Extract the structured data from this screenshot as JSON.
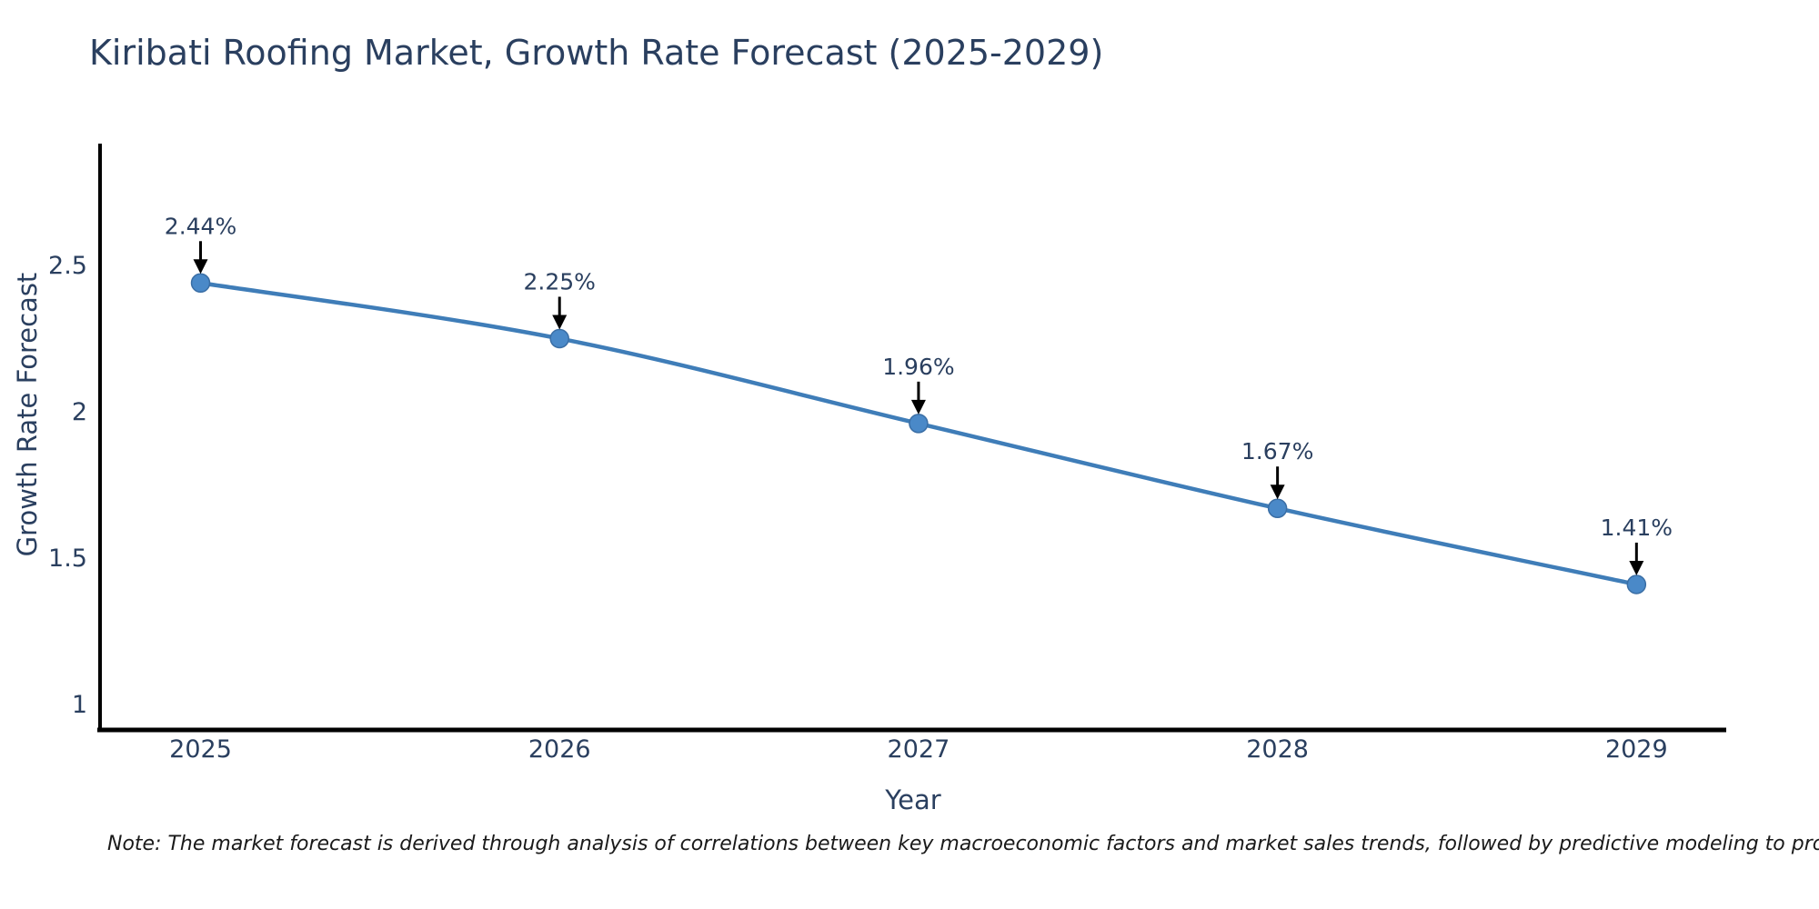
{
  "title": "Kiribati Roofing Market, Growth Rate Forecast (2025-2029)",
  "note": "Note: The market forecast is derived through analysis of correlations between key macroeconomic factors and market sales trends, followed by predictive modeling to project future sales",
  "chart_data": {
    "type": "line",
    "title": "Kiribati Roofing Market, Growth Rate Forecast (2025-2029)",
    "xlabel": "Year",
    "ylabel": "Growth Rate Forecast",
    "x": [
      2025,
      2026,
      2027,
      2028,
      2029
    ],
    "y": [
      2.44,
      2.25,
      1.96,
      1.67,
      1.41
    ],
    "point_labels": [
      "2.44%",
      "2.25%",
      "1.96%",
      "1.67%",
      "1.41%"
    ],
    "xticks": [
      2025,
      2026,
      2027,
      2028,
      2029
    ],
    "yticks": [
      1,
      1.5,
      2,
      2.5
    ],
    "xlim": [
      2024.72,
      2029.25
    ],
    "ylim": [
      0.913,
      2.916
    ],
    "grid": false,
    "legend": false,
    "colors": {
      "line": "#3f7db8",
      "marker": "#4a89c8",
      "marker_edge": "#3a6ea5",
      "axis": "#000000",
      "text": "#2a3f5f",
      "annotation_arrow": "#000000"
    }
  }
}
